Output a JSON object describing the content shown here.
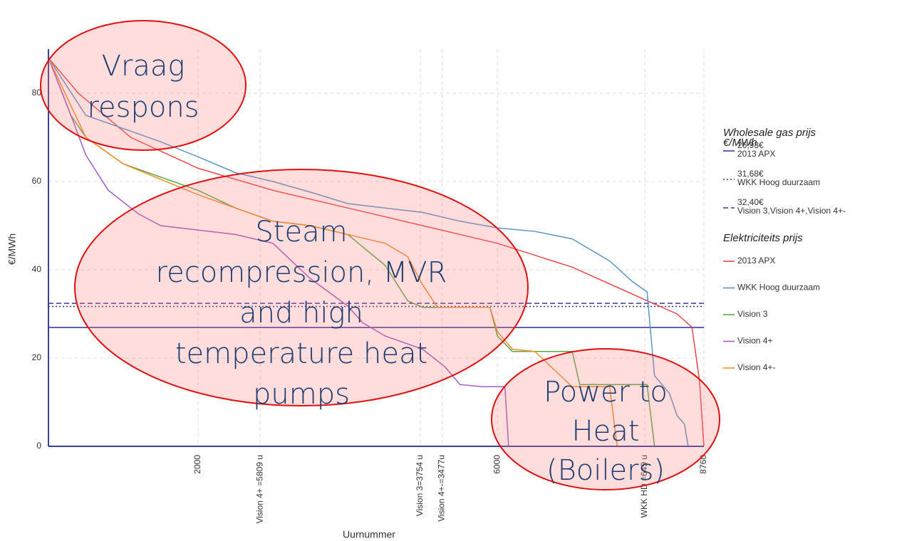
{
  "chart_data": {
    "type": "line",
    "xlabel": "Uurnummer",
    "ylabel": "€/MWh",
    "xlim": [
      0,
      8760
    ],
    "ylim": [
      0,
      90
    ],
    "yticks": [
      0,
      20,
      40,
      60,
      80
    ],
    "xticks": [
      2000,
      {
        "value": 2830,
        "label": "Vision 4+ =5809 u"
      },
      {
        "value": 4970,
        "label": "Vision 3=3754 u"
      },
      {
        "value": 5260,
        "label": "Vision 4+-=3477u"
      },
      6000,
      {
        "value": 7970,
        "label": "WKK HD =649 u"
      },
      8760
    ],
    "grid": true,
    "legend_groups": [
      {
        "title": [
          "Wholesale gas prijs",
          "€/MWh"
        ]
      },
      {
        "title": [
          "Elektriciteits prijs"
        ]
      }
    ],
    "hlines": [
      {
        "value": 26.93,
        "label": "26,93€",
        "name": "2013 APX",
        "color": "#3b3f99",
        "dash": "solid"
      },
      {
        "value": 31.68,
        "label": "31,68€",
        "name": "WKK Hoog duurzaam",
        "color": "#3b3f99",
        "dash": "dotted"
      },
      {
        "value": 32.4,
        "label": "32,40€",
        "name": "Vision 3,Vision 4+,Vision 4+-",
        "color": "#3b3f99",
        "dash": "dashed"
      }
    ],
    "series": [
      {
        "name": "2013 APX",
        "color": "#e8474c",
        "x": [
          0,
          400,
          1100,
          2000,
          3000,
          4000,
          5000,
          6000,
          7000,
          8000,
          8400,
          8600,
          8700,
          8760
        ],
        "values": [
          88,
          80,
          70,
          63,
          58,
          54,
          50,
          46,
          40.6,
          33,
          30,
          27,
          15,
          0
        ]
      },
      {
        "name": "WKK Hoog duurzaam",
        "color": "#5b93c9",
        "x": [
          0,
          500,
          1000,
          1500,
          2000,
          2500,
          3000,
          3500,
          4000,
          4500,
          5000,
          5500,
          6000,
          6500,
          7000,
          7500,
          7800,
          8000,
          8100,
          8300,
          8400,
          8500,
          8550
        ],
        "values": [
          88,
          75,
          72,
          69,
          65.6,
          62,
          60,
          57.6,
          55,
          54,
          53,
          51,
          49.5,
          48.7,
          47,
          42,
          37.4,
          35,
          16,
          12,
          7,
          5,
          0
        ]
      },
      {
        "name": "Vision 3",
        "color": "#5aa845",
        "x": [
          0,
          300,
          500,
          1000,
          2000,
          2500,
          3000,
          3500,
          4000,
          4500,
          4800,
          5000,
          5900,
          6000,
          6200,
          7000,
          7100,
          8000,
          8100
        ],
        "values": [
          88,
          75,
          70,
          64,
          58,
          54,
          51,
          50,
          48,
          41,
          33,
          31.5,
          31.5,
          25,
          21.5,
          21.5,
          14,
          14,
          0
        ]
      },
      {
        "name": "Vision 4+",
        "color": "#a35bc4",
        "x": [
          0,
          300,
          500,
          800,
          1200,
          1500,
          2500,
          3000,
          3500,
          4000,
          4200,
          4500,
          5000,
          5300,
          5500,
          5800,
          6100,
          6150
        ],
        "values": [
          88,
          75,
          66,
          58,
          52.7,
          50,
          48,
          46,
          38,
          31.8,
          28,
          25,
          22,
          18,
          14,
          13.5,
          13.5,
          0
        ]
      },
      {
        "name": "Vision 4+-",
        "color": "#f28c28",
        "x": [
          0,
          500,
          1000,
          2000,
          3000,
          3500,
          4000,
          4500,
          4800,
          5000,
          5200,
          5900,
          6000,
          6200,
          6500,
          7000,
          7500,
          7600
        ],
        "values": [
          88,
          70,
          64,
          57,
          51,
          50,
          48,
          46,
          43,
          36.6,
          31.5,
          31.5,
          26,
          22,
          21.5,
          13.5,
          13.5,
          0
        ]
      }
    ],
    "annotations": [
      {
        "lines": [
          "Vraag",
          "respons"
        ]
      },
      {
        "lines": [
          "Steam",
          "recompression, MVR",
          "and high",
          "temperature heat",
          "pumps"
        ]
      },
      {
        "lines": [
          "Power to",
          "Heat",
          "(Boilers)"
        ]
      }
    ]
  }
}
